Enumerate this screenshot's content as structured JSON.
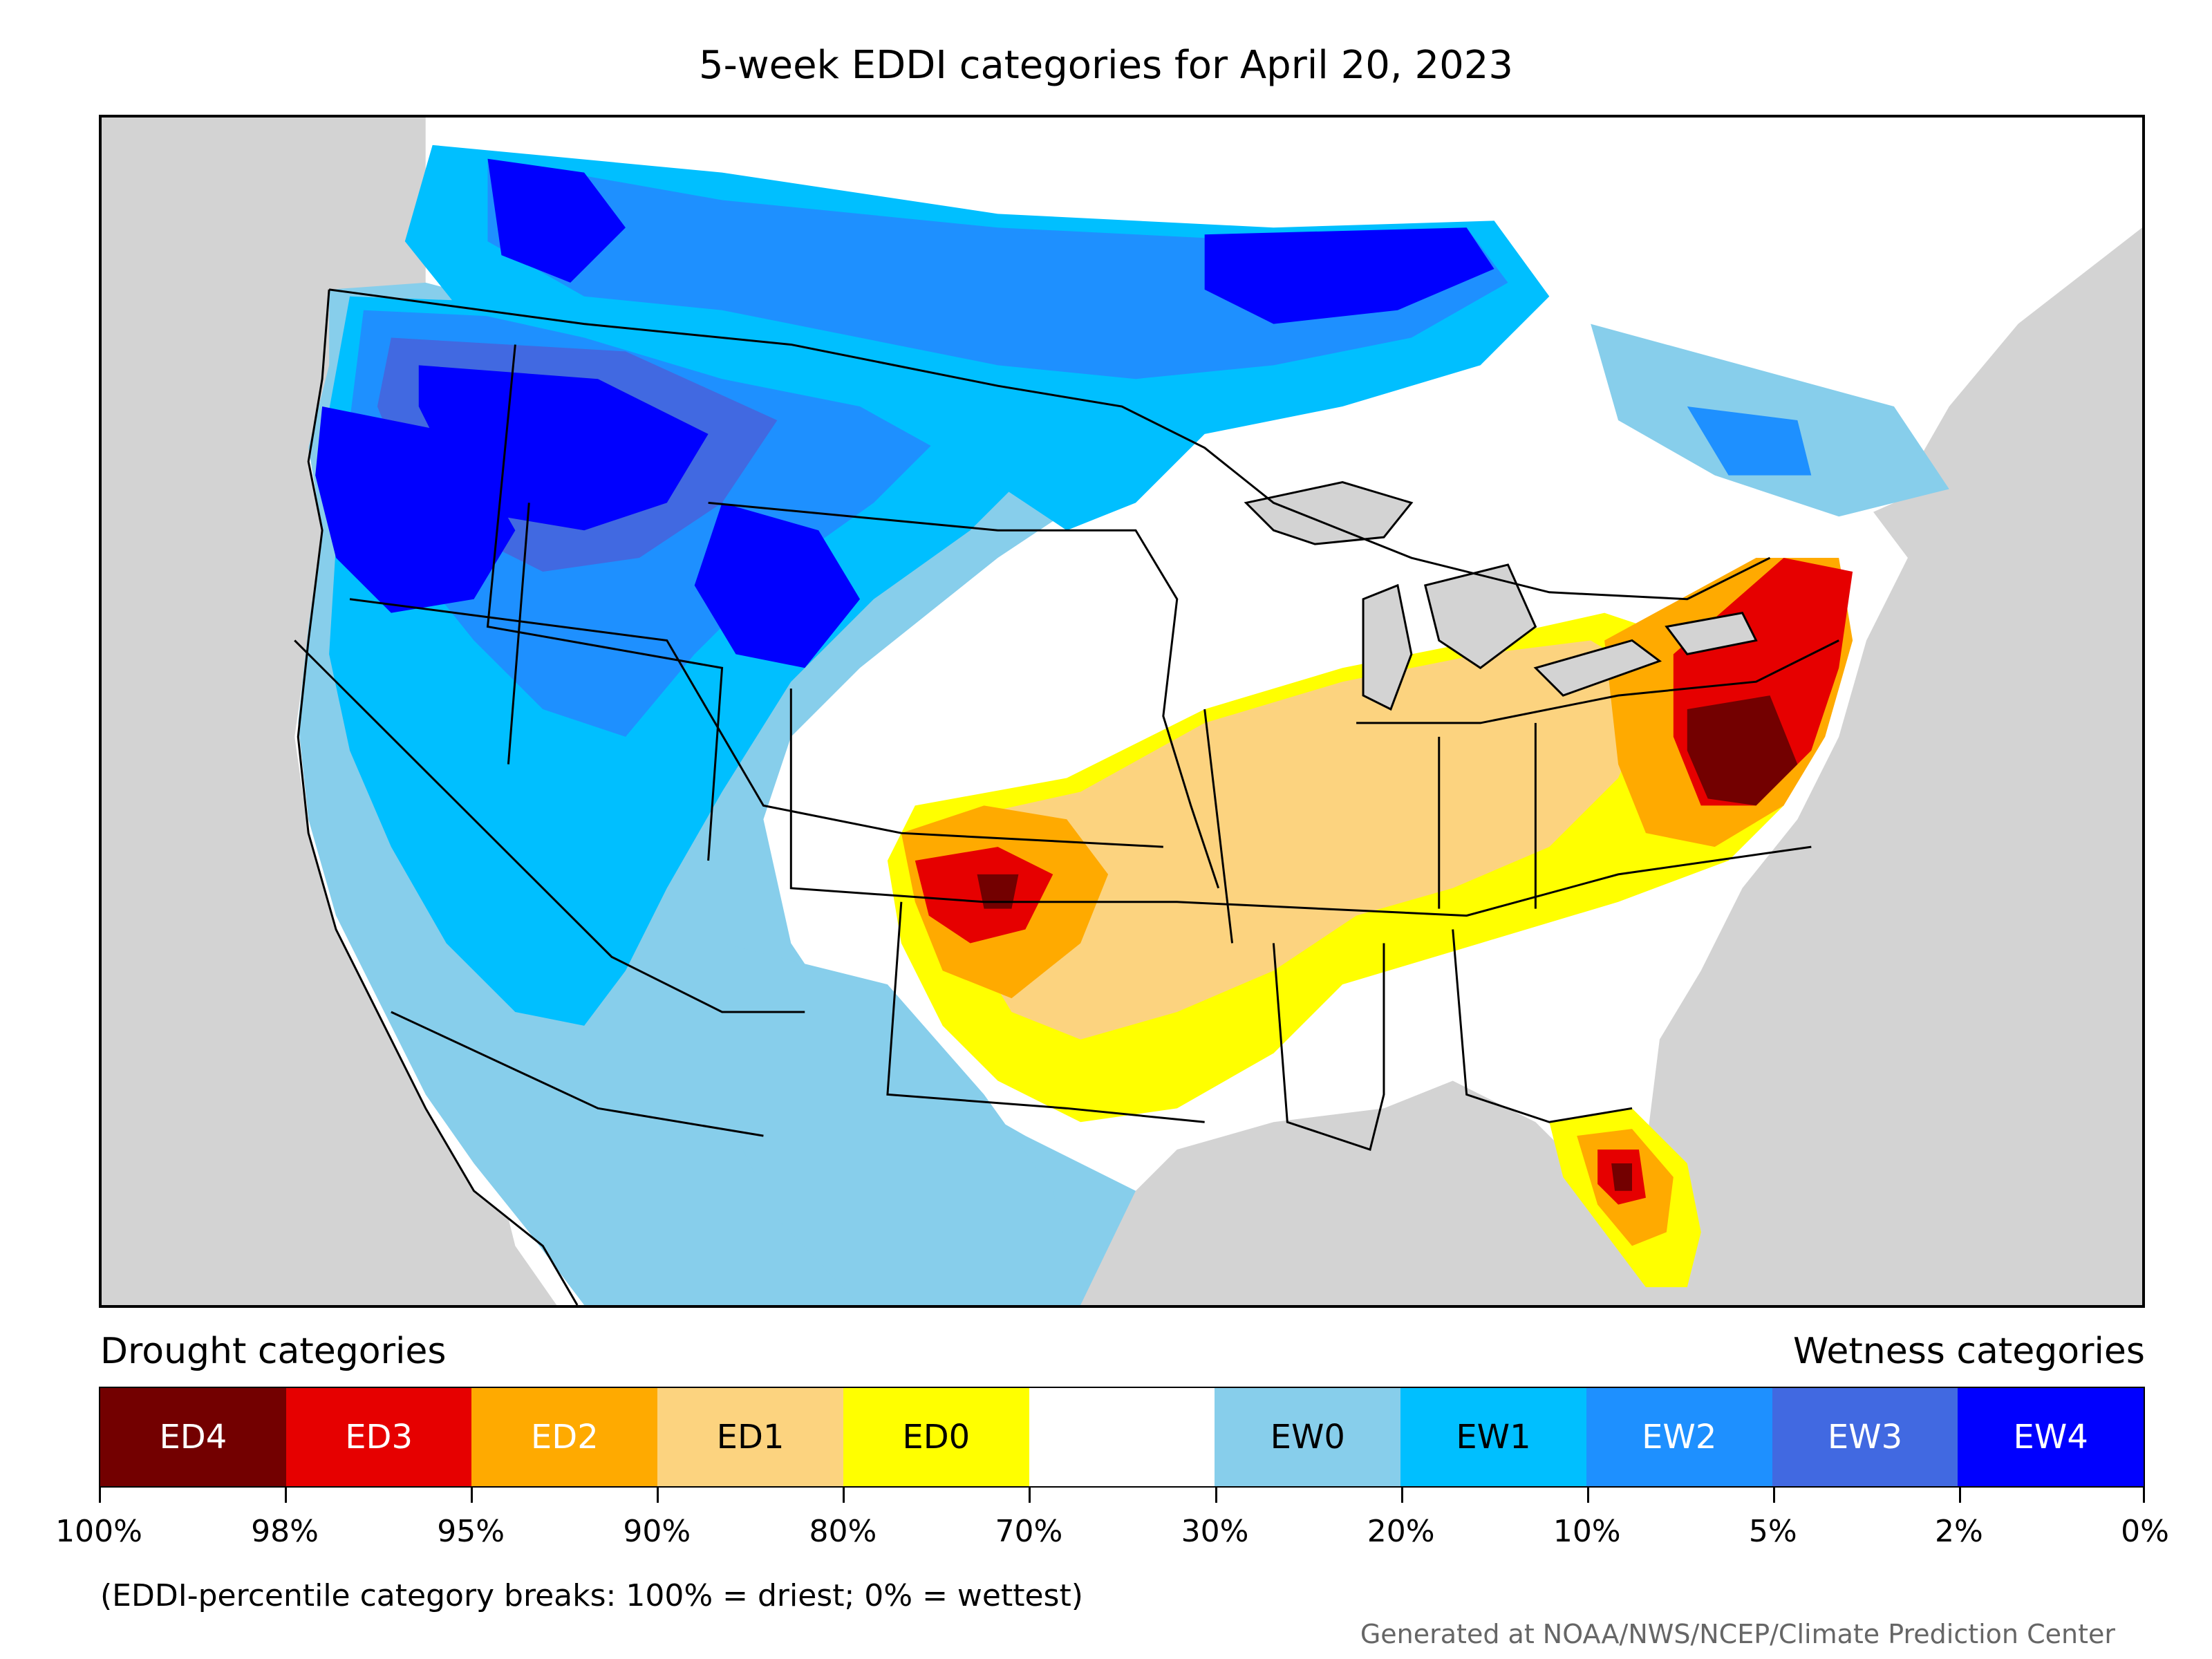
{
  "title": "5-week EDDI categories for April 20, 2023",
  "legend": {
    "drought_heading": "Drought categories",
    "wetness_heading": "Wetness categories",
    "categories": [
      {
        "label": "ED4",
        "color": "#730000",
        "text_color": "#ffffff"
      },
      {
        "label": "ED3",
        "color": "#e60000",
        "text_color": "#ffffff"
      },
      {
        "label": "ED2",
        "color": "#ffaa00",
        "text_color": "#ffffff"
      },
      {
        "label": "ED1",
        "color": "#fcd37f",
        "text_color": "#000000"
      },
      {
        "label": "ED0",
        "color": "#ffff00",
        "text_color": "#000000"
      },
      {
        "label": "",
        "color": "#ffffff",
        "text_color": "#000000"
      },
      {
        "label": "EW0",
        "color": "#87ceeb",
        "text_color": "#000000"
      },
      {
        "label": "EW1",
        "color": "#00bfff",
        "text_color": "#000000"
      },
      {
        "label": "EW2",
        "color": "#1e90ff",
        "text_color": "#ffffff"
      },
      {
        "label": "EW3",
        "color": "#4169e1",
        "text_color": "#ffffff"
      },
      {
        "label": "EW4",
        "color": "#0000ff",
        "text_color": "#ffffff"
      }
    ],
    "tick_labels": [
      "100%",
      "98%",
      "95%",
      "90%",
      "80%",
      "70%",
      "30%",
      "20%",
      "10%",
      "5%",
      "2%",
      "0%"
    ]
  },
  "note": "(EDDI-percentile category breaks: 100% = driest; 0% = wettest)",
  "credit": "Generated at NOAA/NWS/NCEP/Climate Prediction Center"
}
